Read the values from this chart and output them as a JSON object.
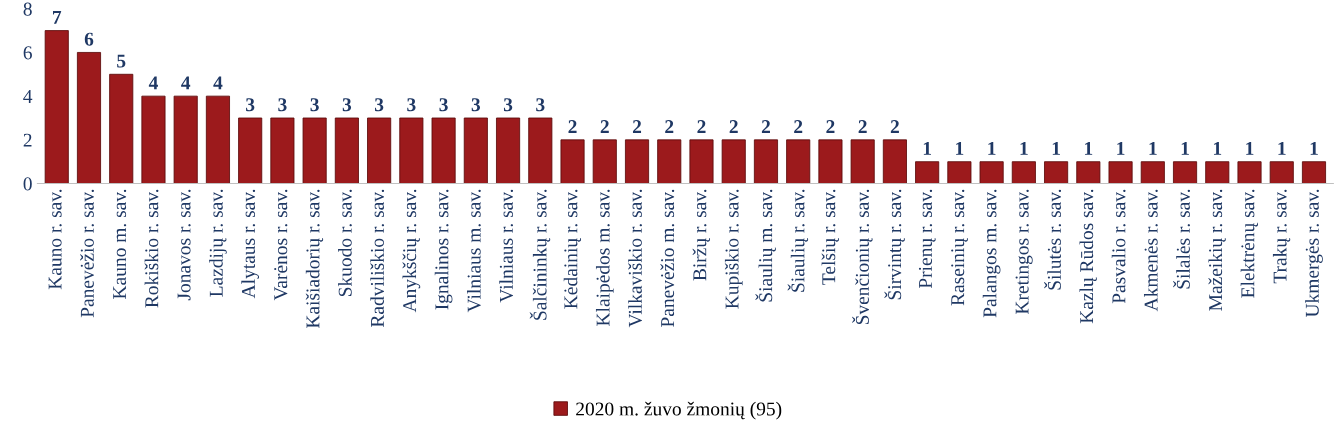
{
  "chart_data": {
    "type": "bar",
    "categories": [
      "Kauno r. sav.",
      "Panevėžio r. sav.",
      "Kauno m. sav.",
      "Rokiškio r. sav.",
      "Jonavos r. sav.",
      "Lazdijų r. sav.",
      "Alytaus r. sav.",
      "Varėnos r. sav.",
      "Kaišiadorių r. sav.",
      "Skuodo r. sav.",
      "Radviliškio r. sav.",
      "Anykščių r. sav.",
      "Ignalinos r. sav.",
      "Vilniaus m. sav.",
      "Vilniaus r. sav.",
      "Šalčininkų r. sav.",
      "Kėdainių r. sav.",
      "Klaipėdos m. sav.",
      "Vilkaviškio r. sav.",
      "Panevėžio m. sav.",
      "Biržų r. sav.",
      "Kupiškio r. sav.",
      "Šiaulių m. sav.",
      "Šiaulių r. sav.",
      "Telšių r. sav.",
      "Švenčionių r. sav.",
      "Širvintų r. sav.",
      "Prienų r. sav.",
      "Raseinių r. sav.",
      "Palangos m. sav.",
      "Kretingos r. sav.",
      "Šilutės r. sav.",
      "Kazlų Rūdos sav.",
      "Pasvalio r. sav.",
      "Akmenės r. sav.",
      "Šilalės r. sav.",
      "Mažeikių r. sav.",
      "Elektrėnų sav.",
      "Trakų r. sav.",
      "Ukmergės r. sav."
    ],
    "series": [
      {
        "name": "2020 m. žuvo žmonių (95)",
        "color": "#9c1a1c",
        "values": [
          7,
          6,
          5,
          4,
          4,
          4,
          3,
          3,
          3,
          3,
          3,
          3,
          3,
          3,
          3,
          3,
          2,
          2,
          2,
          2,
          2,
          2,
          2,
          2,
          2,
          2,
          2,
          1,
          1,
          1,
          1,
          1,
          1,
          1,
          1,
          1,
          1,
          1,
          1,
          1
        ]
      }
    ],
    "ylim": [
      0,
      8
    ],
    "yticks": [
      0,
      2,
      4,
      6,
      8
    ],
    "grid": false,
    "legend": "bottom",
    "data_labels": true
  }
}
